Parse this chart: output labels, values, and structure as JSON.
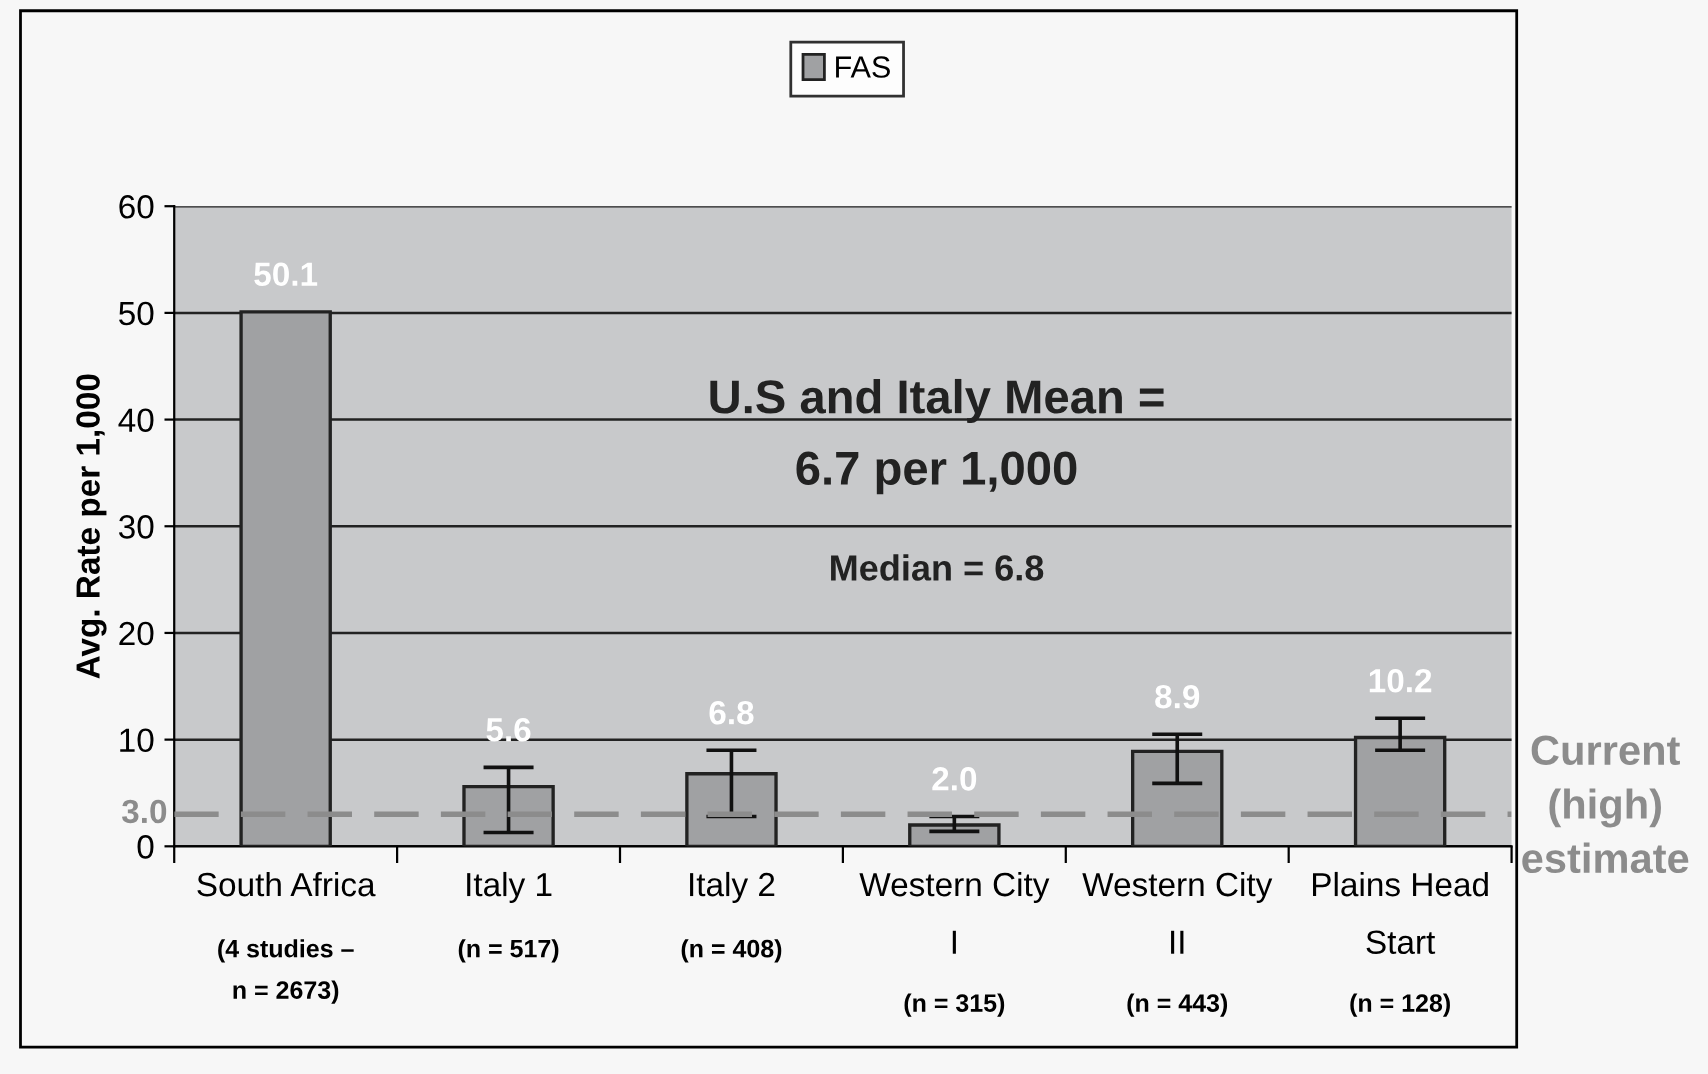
{
  "chart_data": {
    "type": "bar",
    "categories": [
      "South Africa\n\n(4 studies –\nn = 2673)",
      "Italy 1\n\n(n = 517)",
      "Italy 2\n\n(n = 408)",
      "Western City\nI\n\n(n = 315)",
      "Western City\nII\n\n(n = 443)",
      "Plains Head\nStart\n\n(n = 128)"
    ],
    "series": [
      {
        "name": "FAS",
        "color": "#a0a1a3",
        "values": [
          50.1,
          5.6,
          6.8,
          2.0,
          8.9,
          10.2
        ],
        "errors": [
          null,
          [
            1.3,
            7.4
          ],
          [
            2.8,
            9.0
          ],
          [
            1.4,
            2.8
          ],
          [
            5.9,
            10.5
          ],
          [
            9.0,
            12.0
          ]
        ]
      }
    ],
    "ylabel": "Avg. Rate per 1,000",
    "ylim": [
      0,
      60
    ],
    "yticks": [
      0,
      10,
      20,
      30,
      40,
      50,
      60
    ],
    "value_labels": [
      "50.1",
      "5.6",
      "6.8",
      "2.0",
      "8.9",
      "10.2"
    ],
    "grid": "y",
    "legend": "top",
    "ref_lines": [
      {
        "axis": "y",
        "value": 3.0,
        "label": "3.0",
        "color": "#8c8c8c",
        "line_style": "dashed"
      }
    ],
    "annotations": [
      "U.S and Italy Mean =\n6.7 per 1,000",
      "Median = 6.8",
      "Current\n(high)\nestimate"
    ]
  }
}
